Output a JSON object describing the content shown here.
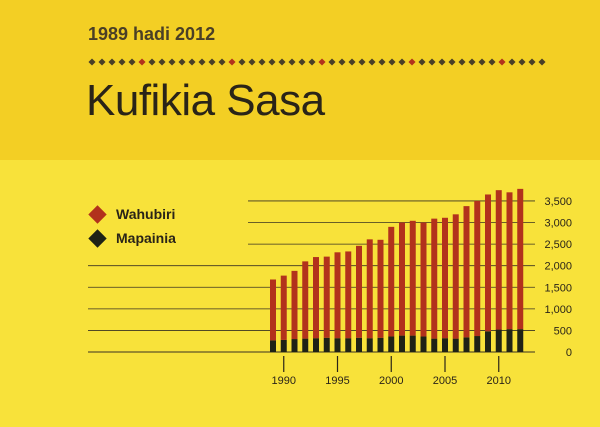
{
  "header": {
    "subtitle": "1989 hadi 2012",
    "title": "Kufikia Sasa"
  },
  "colors": {
    "background": "#f8e23a",
    "header_band": "#f3cf24",
    "series_preachers": "#b2321c",
    "series_pioneers": "#1f2216",
    "dots": [
      "#4a3f26",
      "#b2321c"
    ]
  },
  "chart_data": {
    "type": "bar",
    "stacked": true,
    "x": [
      1989,
      1990,
      1991,
      1992,
      1993,
      1994,
      1995,
      1996,
      1997,
      1998,
      1999,
      2000,
      2001,
      2002,
      2003,
      2004,
      2005,
      2006,
      2007,
      2008,
      2009,
      2010,
      2011,
      2012
    ],
    "series": [
      {
        "name": "Mapainia",
        "color": "#1f2216",
        "values": [
          270,
          280,
          300,
          310,
          320,
          330,
          320,
          320,
          330,
          320,
          330,
          360,
          380,
          380,
          360,
          310,
          320,
          310,
          340,
          370,
          480,
          520,
          530,
          530
        ]
      },
      {
        "name": "Wahubiri",
        "color": "#b2321c",
        "values": [
          1410,
          1490,
          1580,
          1790,
          1880,
          1880,
          1990,
          2010,
          2130,
          2290,
          2270,
          2540,
          2620,
          2660,
          2640,
          2780,
          2790,
          2880,
          3040,
          3130,
          3170,
          3230,
          3170,
          3250
        ]
      }
    ],
    "x_ticks": [
      "1990",
      "1995",
      "2000",
      "2005",
      "2010"
    ],
    "y_ticks": [
      "0",
      "500",
      "1,000",
      "1,500",
      "2,000",
      "2,500",
      "3,000",
      "3,500"
    ],
    "ylim": [
      0,
      3800
    ],
    "legend": {
      "position": "top-left",
      "items": [
        {
          "label": "Wahubiri",
          "color": "#b2321c"
        },
        {
          "label": "Mapainia",
          "color": "#1f2216"
        }
      ]
    },
    "grid": true
  }
}
